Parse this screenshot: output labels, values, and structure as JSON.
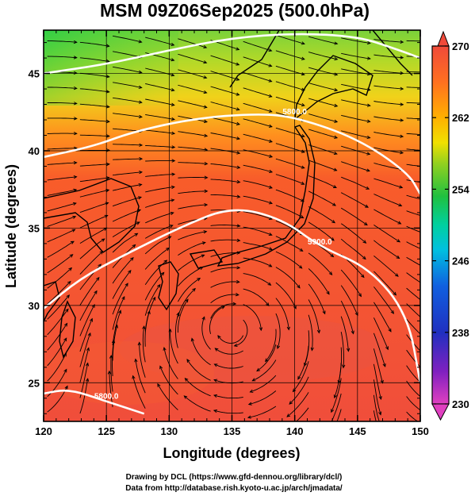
{
  "chart_data": {
    "type": "heatmap",
    "title": "MSM 09Z06Sep2025 (500.0hPa)",
    "xlabel": "Longitude (degrees)",
    "ylabel": "Latitude  (degrees)",
    "xlim": [
      120,
      150
    ],
    "ylim": [
      22.5,
      47.8
    ],
    "xticks": [
      "120",
      "125",
      "130",
      "135",
      "140",
      "145",
      "150"
    ],
    "yticks": [
      "25",
      "30",
      "35",
      "40",
      "45"
    ],
    "colorbar": {
      "min": 230,
      "max": 270,
      "ticks": [
        "270",
        "262",
        "254",
        "246",
        "238",
        "230"
      ],
      "colors": [
        "#e040c0",
        "#8020c0",
        "#2030c0",
        "#1060e0",
        "#00c0e0",
        "#00d0a0",
        "#20c040",
        "#90d020",
        "#f0e000",
        "#ffb000",
        "#ff7020",
        "#f04a3a"
      ]
    },
    "contours": [
      {
        "label": "5900.0",
        "lon": [
          120,
          125,
          130,
          135,
          140,
          145,
          148,
          150
        ],
        "lat": [
          45.0,
          45.6,
          46.5,
          47.3,
          47.6,
          47.4,
          46.6,
          46.0
        ]
      },
      {
        "label": "5800.0",
        "lon": [
          120,
          124,
          127,
          132,
          137,
          140,
          145,
          149,
          150
        ],
        "lat": [
          39.6,
          40.3,
          41.2,
          42.1,
          42.4,
          42.2,
          40.8,
          38.6,
          37.2
        ]
      },
      {
        "label": "5900.0",
        "lon": [
          120,
          123,
          127,
          131,
          135,
          139,
          142,
          146,
          149,
          150
        ],
        "lat": [
          29.8,
          31.8,
          33.5,
          35.1,
          36.4,
          35.6,
          33.8,
          32.4,
          29.4,
          25.0
        ]
      },
      {
        "label": "5800.0",
        "lon": [
          120,
          122,
          125,
          128
        ],
        "lat": [
          24.3,
          24.6,
          23.8,
          23.0
        ]
      }
    ]
  },
  "credits": {
    "line1": "Drawing by DCL (https://www.gfd-dennou.org/library/dcl/)",
    "line2": "Data from http://database.rish.kyoto-u.ac.jp/arch/jmadata/"
  }
}
